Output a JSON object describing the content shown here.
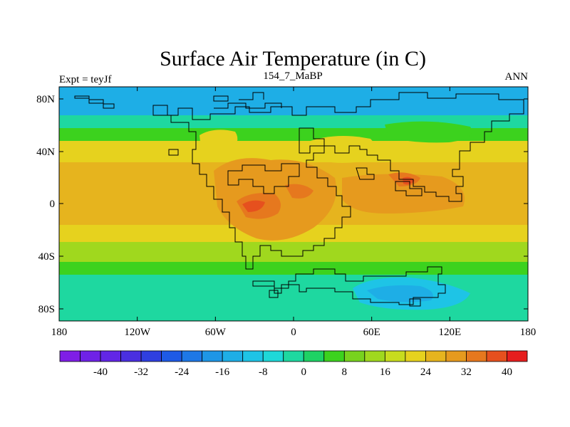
{
  "title": "Surface Air Temperature (in C)",
  "subtitle_left": "Expt = teyJf",
  "subtitle_center": "154_7_MaBP",
  "subtitle_right": "ANN",
  "lon_ticks": [
    "180",
    "120W",
    "60W",
    "0",
    "60E",
    "120E",
    "180"
  ],
  "lat_ticks": [
    "80N",
    "40N",
    "0",
    "40S",
    "80S"
  ],
  "colorbar": {
    "labels": [
      "-40",
      "-32",
      "-24",
      "-16",
      "-8",
      "0",
      "8",
      "16",
      "24",
      "32",
      "40"
    ],
    "colors": [
      "#7f1ee6",
      "#6f22e6",
      "#6226e6",
      "#4a2fe0",
      "#2f3fe0",
      "#1e5ae6",
      "#1e78e6",
      "#1e96e6",
      "#1eaee6",
      "#1ec4e6",
      "#1ed8d8",
      "#1ed8a0",
      "#1ed264",
      "#3cd21e",
      "#78d21e",
      "#a0d81e",
      "#c8dc1e",
      "#e6d21e",
      "#e6b41e",
      "#e69a1e",
      "#e6781e",
      "#e6501e",
      "#e61e1e"
    ]
  },
  "map_colors": {
    "polar": "#1eaee6",
    "cold": "#1ec4e6",
    "cool": "#1ed8a0",
    "mild": "#3cd21e",
    "temperate": "#a0d81e",
    "warm": "#e6d21e",
    "hot": "#e6b41e",
    "tropical": "#e69a1e",
    "very_hot": "#e6781e",
    "extreme": "#e6501e"
  }
}
